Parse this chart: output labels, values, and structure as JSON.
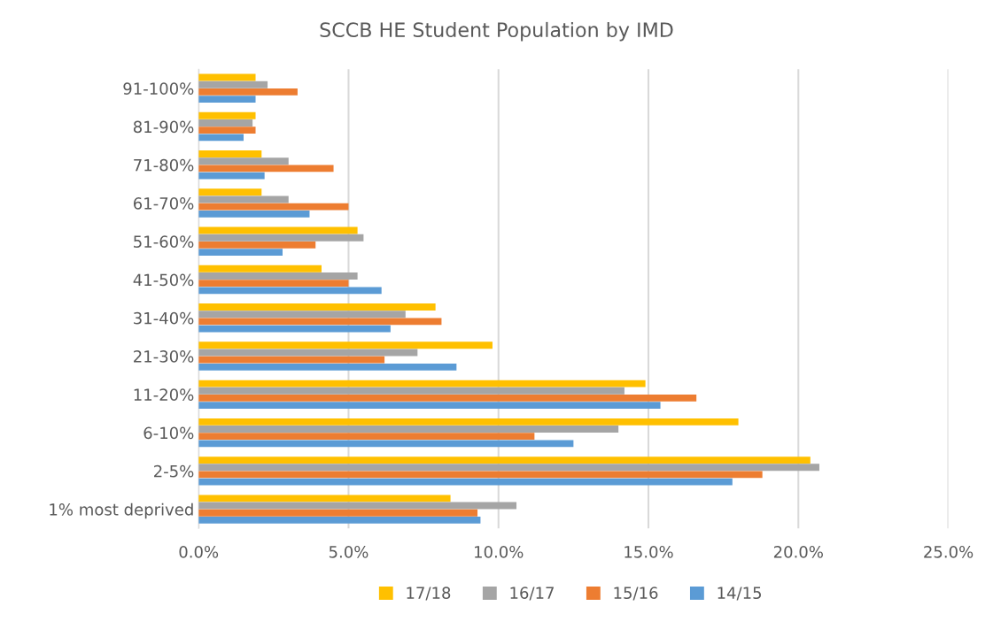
{
  "chart_data": {
    "type": "bar",
    "orientation": "horizontal",
    "title": "SCCB HE Student Population by IMD",
    "categories": [
      "91-100%",
      "81-90%",
      "71-80%",
      "61-70%",
      "51-60%",
      "41-50%",
      "31-40%",
      "21-30%",
      "11-20%",
      "6-10%",
      "2-5%",
      "1% most deprived"
    ],
    "series": [
      {
        "name": "17/18",
        "color": "#ffc000",
        "values": [
          1.9,
          1.9,
          2.1,
          2.1,
          5.3,
          4.1,
          7.9,
          9.8,
          14.9,
          18.0,
          20.4,
          8.4
        ]
      },
      {
        "name": "16/17",
        "color": "#a5a5a5",
        "values": [
          2.3,
          1.8,
          3.0,
          3.0,
          5.5,
          5.3,
          6.9,
          7.3,
          14.2,
          14.0,
          20.7,
          10.6
        ]
      },
      {
        "name": "15/16",
        "color": "#ed7d31",
        "values": [
          3.3,
          1.9,
          4.5,
          5.0,
          3.9,
          5.0,
          8.1,
          6.2,
          16.6,
          11.2,
          18.8,
          9.3
        ]
      },
      {
        "name": "14/15",
        "color": "#5b9bd5",
        "values": [
          1.9,
          1.5,
          2.2,
          3.7,
          2.8,
          6.1,
          6.4,
          8.6,
          15.4,
          12.5,
          17.8,
          9.4
        ]
      }
    ],
    "xlim": [
      0,
      25
    ],
    "xticks": [
      {
        "value": 0,
        "label": "0.0%"
      },
      {
        "value": 5,
        "label": "5.0%"
      },
      {
        "value": 10,
        "label": "10.0%"
      },
      {
        "value": 15,
        "label": "15.0%"
      },
      {
        "value": 20,
        "label": "20.0%"
      },
      {
        "value": 25,
        "label": "25.0%"
      }
    ],
    "grid": "x",
    "legend": "bottom"
  }
}
